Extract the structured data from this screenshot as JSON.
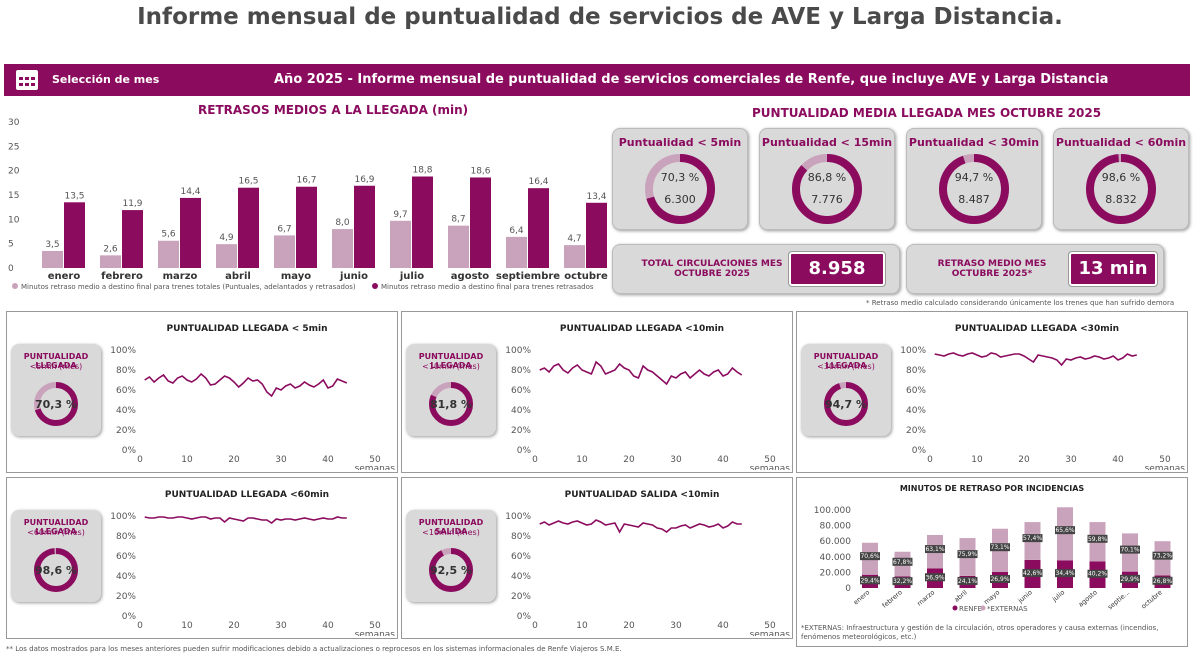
{
  "page_title": "Informe mensual de puntualidad de servicios de AVE y Larga Distancia.",
  "banner": {
    "select_label": "Selección de mes",
    "title": "Año 2025 - Informe mensual de puntualidad de servicios comerciales de Renfe, que incluye AVE y Larga Distancia"
  },
  "colors": {
    "primary": "#8b0b5e",
    "light": "#c9a3bb",
    "card_bg": "#d9d9d9"
  },
  "kpi": {
    "title": "PUNTUALIDAD MEDIA LLEGADA MES OCTUBRE 2025",
    "cards": [
      {
        "label": "Puntualidad < 5min",
        "pct": "70,3 %",
        "count": "6.300",
        "frac": 0.703
      },
      {
        "label": "Puntualidad < 15min",
        "pct": "86,8 %",
        "count": "7.776",
        "frac": 0.868
      },
      {
        "label": "Puntualidad < 30min",
        "pct": "94,7 %",
        "count": "8.487",
        "frac": 0.947
      },
      {
        "label": "Puntualidad < 60min",
        "pct": "98,6 %",
        "count": "8.832",
        "frac": 0.986
      }
    ],
    "total_label": "TOTAL CIRCULACIONES MES OCTUBRE 2025",
    "total_value": "8.958",
    "delay_label": "RETRASO MEDIO MES OCTUBRE 2025*",
    "delay_value": "13  min",
    "footnote": "* Retraso medio calculado considerando únicamente los trenes que han sufrido demora"
  },
  "mini_panels": [
    {
      "title": "PUNTUALIDAD LLEGADA < 5min",
      "badge_l1": "PUNTUALIDAD LLEGADA",
      "badge_l2": "<5min (mes)",
      "value": "70,3 %",
      "frac": 0.703,
      "xlabel": "semanas"
    },
    {
      "title": "PUNTUALIDAD LLEGADA <10min",
      "badge_l1": "PUNTUALIDAD LLEGADA",
      "badge_l2": "<10min (mes)",
      "value": "81,8 %",
      "frac": 0.818,
      "xlabel": "semanas"
    },
    {
      "title": "PUNTUALIDAD LLEGADA <30min",
      "badge_l1": "PUNTUALIDAD LLEGADA",
      "badge_l2": "<30min (mes)",
      "value": "94,7 %",
      "frac": 0.947,
      "xlabel": "semanas"
    },
    {
      "title": "PUNTUALIDAD LLEGADA <60min",
      "badge_l1": "PUNTUALIDAD LLEGADA",
      "badge_l2": "<60min (mes)",
      "value": "98,6 %",
      "frac": 0.986,
      "xlabel": "semanas"
    },
    {
      "title": "PUNTUALIDAD SALIDA <10min",
      "badge_l1": "PUNTUALIDAD SALIDA",
      "badge_l2": "<10min (mes)",
      "value": "92,5 %",
      "frac": 0.925,
      "xlabel": "semanas"
    }
  ],
  "incid_note": "*EXTERNAS: Infraestructura y gestión de la circulación, otros operadores y causa externas (incendios, fenómenos meteorológicos, etc.)",
  "footer_note": "** Los datos mostrados para los meses anteriores pueden sufrir modificaciones debido a actualizaciones o reprocesos en los sistemas informacionales de Renfe Viajeros S.M.E.",
  "chart_data": [
    {
      "type": "bar",
      "title": "RETRASOS MEDIOS A LA LLEGADA (min)",
      "categories": [
        "enero",
        "febrero",
        "marzo",
        "abril",
        "mayo",
        "junio",
        "julio",
        "agosto",
        "septiembre",
        "octubre"
      ],
      "ylim": [
        0,
        30
      ],
      "yticks": [
        0,
        5,
        10,
        15,
        20,
        25,
        30
      ],
      "series": [
        {
          "name": "Minutos retraso medio a destino final para trenes totales (Puntuales, adelantados y retrasados)",
          "color": "#c9a3bb",
          "values": [
            3.5,
            2.6,
            5.6,
            4.9,
            6.7,
            8.0,
            9.7,
            8.7,
            6.4,
            4.7
          ],
          "labels": [
            "3,5",
            "2,6",
            "5,6",
            "4,9",
            "6,7",
            "8,0",
            "9,7",
            "8,7",
            "6,4",
            "4,7"
          ]
        },
        {
          "name": "Minutos retraso medio a destino final para trenes retrasados",
          "color": "#8b0b5e",
          "values": [
            13.5,
            11.9,
            14.4,
            16.5,
            16.7,
            16.9,
            18.8,
            18.6,
            16.4,
            13.4
          ],
          "labels": [
            "13,5",
            "11,9",
            "14,4",
            "16,5",
            "16,7",
            "16,9",
            "18,8",
            "18,6",
            "16,4",
            "13,4"
          ]
        }
      ]
    },
    {
      "type": "line",
      "title": "PUNTUALIDAD LLEGADA < 5min",
      "xlabel": "semanas",
      "xlim": [
        0,
        50
      ],
      "xticks": [
        0,
        10,
        20,
        30,
        40,
        50
      ],
      "ylim": [
        0,
        100
      ],
      "yticks": [
        "0%",
        "20%",
        "40%",
        "60%",
        "80%",
        "100%"
      ],
      "x": [
        1,
        2,
        3,
        4,
        5,
        6,
        7,
        8,
        9,
        10,
        11,
        12,
        13,
        14,
        15,
        16,
        17,
        18,
        19,
        20,
        21,
        22,
        23,
        24,
        25,
        26,
        27,
        28,
        29,
        30,
        31,
        32,
        33,
        34,
        35,
        36,
        37,
        38,
        39,
        40,
        41,
        42,
        43,
        44
      ],
      "values": [
        70,
        73,
        68,
        72,
        75,
        69,
        67,
        72,
        74,
        70,
        68,
        71,
        76,
        72,
        65,
        66,
        70,
        74,
        72,
        68,
        63,
        67,
        72,
        69,
        70,
        66,
        58,
        54,
        62,
        60,
        64,
        66,
        62,
        64,
        68,
        65,
        63,
        66,
        70,
        62,
        64,
        71,
        69,
        67
      ]
    },
    {
      "type": "line",
      "title": "PUNTUALIDAD LLEGADA <10min",
      "xlabel": "semanas",
      "xlim": [
        0,
        50
      ],
      "xticks": [
        0,
        10,
        20,
        30,
        40,
        50
      ],
      "ylim": [
        0,
        100
      ],
      "yticks": [
        "0%",
        "20%",
        "40%",
        "60%",
        "80%",
        "100%"
      ],
      "x": [
        1,
        2,
        3,
        4,
        5,
        6,
        7,
        8,
        9,
        10,
        11,
        12,
        13,
        14,
        15,
        16,
        17,
        18,
        19,
        20,
        21,
        22,
        23,
        24,
        25,
        26,
        27,
        28,
        29,
        30,
        31,
        32,
        33,
        34,
        35,
        36,
        37,
        38,
        39,
        40,
        41,
        42,
        43,
        44
      ],
      "values": [
        80,
        82,
        78,
        84,
        86,
        80,
        77,
        82,
        85,
        80,
        78,
        76,
        88,
        84,
        76,
        78,
        80,
        86,
        82,
        80,
        74,
        72,
        84,
        80,
        78,
        74,
        70,
        66,
        74,
        72,
        76,
        78,
        72,
        76,
        80,
        76,
        74,
        78,
        80,
        74,
        76,
        82,
        78,
        75
      ]
    },
    {
      "type": "line",
      "title": "PUNTUALIDAD LLEGADA <30min",
      "xlabel": "semanas",
      "xlim": [
        0,
        50
      ],
      "xticks": [
        0,
        10,
        20,
        30,
        40,
        50
      ],
      "ylim": [
        0,
        100
      ],
      "yticks": [
        "0%",
        "20%",
        "40%",
        "60%",
        "80%",
        "100%"
      ],
      "x": [
        1,
        2,
        3,
        4,
        5,
        6,
        7,
        8,
        9,
        10,
        11,
        12,
        13,
        14,
        15,
        16,
        17,
        18,
        19,
        20,
        21,
        22,
        23,
        24,
        25,
        26,
        27,
        28,
        29,
        30,
        31,
        32,
        33,
        34,
        35,
        36,
        37,
        38,
        39,
        40,
        41,
        42,
        43,
        44
      ],
      "values": [
        96,
        95,
        94,
        96,
        97,
        95,
        94,
        96,
        97,
        95,
        93,
        94,
        97,
        96,
        93,
        94,
        95,
        96,
        96,
        94,
        91,
        88,
        95,
        94,
        93,
        92,
        90,
        85,
        91,
        90,
        92,
        93,
        91,
        92,
        94,
        93,
        91,
        92,
        94,
        90,
        92,
        96,
        94,
        95
      ]
    },
    {
      "type": "line",
      "title": "PUNTUALIDAD LLEGADA <60min",
      "xlabel": "semanas",
      "xlim": [
        0,
        50
      ],
      "xticks": [
        0,
        10,
        20,
        30,
        40,
        50
      ],
      "ylim": [
        0,
        100
      ],
      "yticks": [
        "0%",
        "20%",
        "40%",
        "60%",
        "80%",
        "100%"
      ],
      "x": [
        1,
        2,
        3,
        4,
        5,
        6,
        7,
        8,
        9,
        10,
        11,
        12,
        13,
        14,
        15,
        16,
        17,
        18,
        19,
        20,
        21,
        22,
        23,
        24,
        25,
        26,
        27,
        28,
        29,
        30,
        31,
        32,
        33,
        34,
        35,
        36,
        37,
        38,
        39,
        40,
        41,
        42,
        43,
        44
      ],
      "values": [
        99,
        98,
        98,
        99,
        99,
        98,
        98,
        99,
        99,
        98,
        97,
        98,
        99,
        99,
        97,
        98,
        98,
        94,
        98,
        97,
        96,
        95,
        98,
        98,
        97,
        96,
        96,
        93,
        97,
        96,
        97,
        97,
        96,
        97,
        98,
        97,
        96,
        97,
        98,
        97,
        97,
        99,
        98,
        98
      ]
    },
    {
      "type": "line",
      "title": "PUNTUALIDAD SALIDA <10min",
      "xlabel": "semanas",
      "xlim": [
        0,
        50
      ],
      "xticks": [
        0,
        10,
        20,
        30,
        40,
        50
      ],
      "ylim": [
        0,
        100
      ],
      "yticks": [
        "0%",
        "20%",
        "40%",
        "60%",
        "80%",
        "100%"
      ],
      "x": [
        1,
        2,
        3,
        4,
        5,
        6,
        7,
        8,
        9,
        10,
        11,
        12,
        13,
        14,
        15,
        16,
        17,
        18,
        19,
        20,
        21,
        22,
        23,
        24,
        25,
        26,
        27,
        28,
        29,
        30,
        31,
        32,
        33,
        34,
        35,
        36,
        37,
        38,
        39,
        40,
        41,
        42,
        43,
        44
      ],
      "values": [
        92,
        94,
        91,
        93,
        95,
        93,
        92,
        94,
        95,
        93,
        91,
        92,
        96,
        94,
        91,
        92,
        93,
        84,
        92,
        91,
        90,
        89,
        93,
        92,
        91,
        88,
        87,
        84,
        88,
        88,
        90,
        91,
        88,
        90,
        92,
        91,
        89,
        90,
        92,
        88,
        90,
        94,
        92,
        92
      ]
    },
    {
      "type": "bar",
      "title": "MINUTOS DE RETRASO POR INCIDENCIAS",
      "categories": [
        "enero",
        "febrero",
        "marzo",
        "abril",
        "mayo",
        "junio",
        "julio",
        "agosto",
        "septie...",
        "octubre"
      ],
      "ylim": [
        0,
        100000
      ],
      "yticks": [
        "0",
        "20.000",
        "40.000",
        "60.000",
        "80.000",
        "100.000"
      ],
      "stacked": true,
      "series": [
        {
          "name": "RENFE",
          "color": "#8b0b5e",
          "values": [
            17000,
            15000,
            25000,
            15500,
            20500,
            36000,
            35500,
            34000,
            21000,
            16000
          ],
          "labels": [
            "29,4%",
            "32,2%",
            "36,9%",
            "24,1%",
            "26,9%",
            "42,6%",
            "34,4%",
            "40,2%",
            "29,9%",
            "26,8%"
          ]
        },
        {
          "name": "*EXTERNAS",
          "color": "#c9a3bb",
          "values": [
            41000,
            31500,
            43000,
            48500,
            55500,
            48500,
            68000,
            50500,
            49000,
            44000
          ],
          "labels": [
            "70,6%",
            "67,8%",
            "63,1%",
            "75,9%",
            "73,1%",
            "57,4%",
            "65,6%",
            "59,8%",
            "70,1%",
            "73,2%"
          ]
        }
      ]
    }
  ]
}
